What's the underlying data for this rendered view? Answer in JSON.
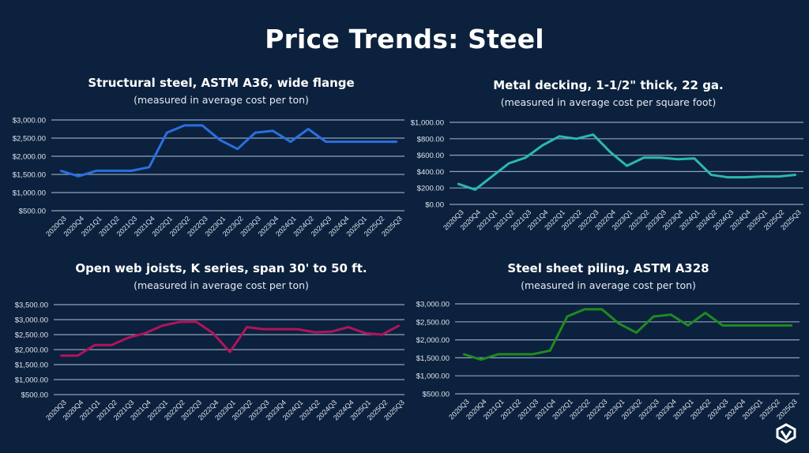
{
  "title": "Price Trends: Steel",
  "chart_data": [
    {
      "type": "line",
      "title": "Structural steel, ASTM A36, wide flange",
      "subtitle": "(measured in average cost per ton)",
      "color": "#2a6fe0",
      "ylim": [
        500,
        3000
      ],
      "yticks": [
        "$3,000.00",
        "$2,500.00",
        "$2,000.00",
        "$1,500.00",
        "$1,000.00",
        "$500.00"
      ],
      "grid": true,
      "categories": [
        "2020Q3",
        "2020Q4",
        "2021Q1",
        "2021Q2",
        "2021Q3",
        "2021Q4",
        "2022Q1",
        "2022Q2",
        "2022Q3",
        "2023Q1",
        "2023Q2",
        "2023Q3",
        "2023Q4",
        "2024Q1",
        "2024Q2",
        "2024Q3",
        "2024Q4",
        "2025Q1",
        "2025Q2",
        "2025Q3"
      ],
      "values": [
        1600,
        1450,
        1600,
        1600,
        1600,
        1700,
        2650,
        2850,
        2850,
        2450,
        2200,
        2650,
        2700,
        2400,
        2750,
        2400,
        2400,
        2400,
        2400,
        2400
      ]
    },
    {
      "type": "line",
      "title": "Metal decking, 1-1/2\" thick, 22 ga.",
      "subtitle": "(measured in average cost per square foot)",
      "color": "#2ab8b0",
      "ylim": [
        0,
        1000
      ],
      "yticks": [
        "$1,000.00",
        "$800.00",
        "$600.00",
        "$400.00",
        "$200.00",
        "$0.00"
      ],
      "grid": true,
      "categories": [
        "2020Q3",
        "2020Q4",
        "2021Q1",
        "2021Q2",
        "2021Q3",
        "2021Q4",
        "2022Q1",
        "2022Q2",
        "2022Q3",
        "2022Q4",
        "2023Q1",
        "2023Q2",
        "2023Q3",
        "2023Q4",
        "2024Q1",
        "2024Q2",
        "2024Q3",
        "2024Q4",
        "2025Q1",
        "2025Q2",
        "2025Q3"
      ],
      "values": [
        250,
        180,
        340,
        500,
        570,
        720,
        830,
        800,
        850,
        640,
        470,
        570,
        570,
        550,
        560,
        360,
        330,
        330,
        340,
        340,
        360
      ]
    },
    {
      "type": "line",
      "title": "Open web joists, K series, span 30' to 50 ft.",
      "subtitle": "(measured in average cost per ton)",
      "color": "#b0145a",
      "ylim": [
        500,
        3500
      ],
      "yticks": [
        "$3,500.00",
        "$3,000.00",
        "$2,500.00",
        "$2,000.00",
        "$1,500.00",
        "$1,000.00",
        "$500.00"
      ],
      "grid": true,
      "categories": [
        "2020Q3",
        "2020Q4",
        "2021Q1",
        "2021Q2",
        "2021Q3",
        "2021Q4",
        "2022Q1",
        "2022Q2",
        "2022Q3",
        "2022Q4",
        "2023Q1",
        "2023Q2",
        "2023Q3",
        "2023Q4",
        "2024Q1",
        "2024Q2",
        "2024Q3",
        "2024Q4",
        "2025Q1",
        "2025Q2",
        "2025Q3"
      ],
      "values": [
        1800,
        1800,
        2150,
        2150,
        2400,
        2550,
        2800,
        2920,
        2930,
        2550,
        1920,
        2750,
        2680,
        2680,
        2680,
        2580,
        2600,
        2750,
        2550,
        2500,
        2800
      ]
    },
    {
      "type": "line",
      "title": "Steel sheet piling, ASTM A328",
      "subtitle": "(measured in average cost per ton)",
      "color": "#1f8a1f",
      "ylim": [
        500,
        3000
      ],
      "yticks": [
        "$3,000.00",
        "$2,500.00",
        "$2,000.00",
        "$1,500.00",
        "$1,000.00",
        "$500.00"
      ],
      "grid": true,
      "categories": [
        "2020Q3",
        "2020Q4",
        "2021Q1",
        "2021Q2",
        "2021Q3",
        "2021Q4",
        "2022Q1",
        "2022Q2",
        "2022Q3",
        "2023Q1",
        "2023Q2",
        "2023Q3",
        "2023Q4",
        "2024Q1",
        "2024Q2",
        "2024Q3",
        "2024Q4",
        "2025Q1",
        "2025Q2",
        "2025Q3"
      ],
      "values": [
        1600,
        1450,
        1600,
        1600,
        1600,
        1700,
        2650,
        2850,
        2850,
        2450,
        2200,
        2650,
        2700,
        2400,
        2750,
        2400,
        2400,
        2400,
        2400,
        2400
      ]
    }
  ]
}
